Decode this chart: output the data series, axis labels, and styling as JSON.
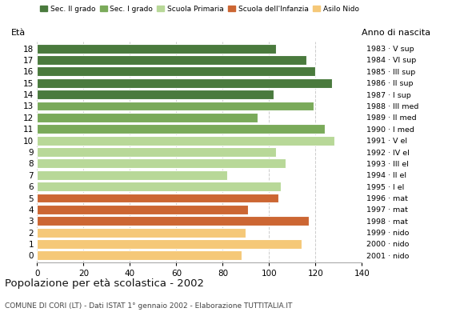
{
  "ages": [
    18,
    17,
    16,
    15,
    14,
    13,
    12,
    11,
    10,
    9,
    8,
    7,
    6,
    5,
    4,
    3,
    2,
    1,
    0
  ],
  "values": [
    103,
    116,
    120,
    127,
    102,
    119,
    95,
    124,
    128,
    103,
    107,
    82,
    105,
    104,
    91,
    117,
    90,
    114,
    88
  ],
  "right_labels": [
    "1983 · V sup",
    "1984 · VI sup",
    "1985 · III sup",
    "1986 · II sup",
    "1987 · I sup",
    "1988 · III med",
    "1989 · II med",
    "1990 · I med",
    "1991 · V el",
    "1992 · IV el",
    "1993 · III el",
    "1994 · II el",
    "1995 · I el",
    "1996 · mat",
    "1997 · mat",
    "1998 · mat",
    "1999 · nido",
    "2000 · nido",
    "2001 · nido"
  ],
  "bar_colors": [
    "#4a7a3d",
    "#4a7a3d",
    "#4a7a3d",
    "#4a7a3d",
    "#4a7a3d",
    "#7aaa5a",
    "#7aaa5a",
    "#7aaa5a",
    "#b8d898",
    "#b8d898",
    "#b8d898",
    "#b8d898",
    "#b8d898",
    "#cc6633",
    "#cc6633",
    "#cc6633",
    "#f5c878",
    "#f5c878",
    "#f5c878"
  ],
  "legend_labels": [
    "Sec. II grado",
    "Sec. I grado",
    "Scuola Primaria",
    "Scuola dell'Infanzia",
    "Asilo Nido"
  ],
  "legend_colors": [
    "#4a7a3d",
    "#7aaa5a",
    "#b8d898",
    "#cc6633",
    "#f5c878"
  ],
  "title": "Popolazione per età scolastica - 2002",
  "subtitle": "COMUNE DI CORI (LT) - Dati ISTAT 1° gennaio 2002 - Elaborazione TUTTITALIA.IT",
  "label_eta": "Età",
  "label_anno": "Anno di nascita",
  "xlim": [
    0,
    140
  ],
  "xticks": [
    0,
    20,
    40,
    60,
    80,
    100,
    120,
    140
  ],
  "grid_color": "#cccccc",
  "background_color": "#ffffff",
  "bar_height": 0.82
}
